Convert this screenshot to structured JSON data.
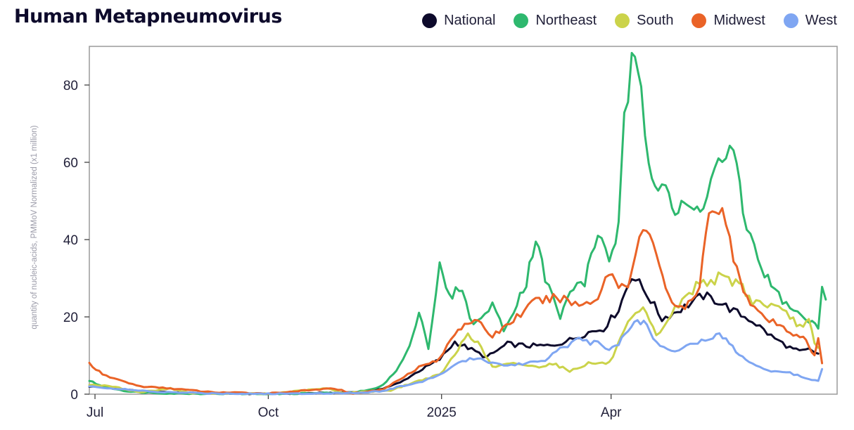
{
  "chart_data": {
    "type": "line",
    "title": "Human Metapneumovirus",
    "ylabel": "quantity of nucleic-acids, PMMoV Normalized (x1 million)",
    "xlabel": "",
    "ylim": [
      0,
      90
    ],
    "yticks": [
      0,
      20,
      40,
      60,
      80
    ],
    "x_range": [
      "2024-06-28",
      "2025-07-30"
    ],
    "xticks": [
      {
        "date": "2024-07-01",
        "label": "Jul"
      },
      {
        "date": "2024-10-01",
        "label": "Oct"
      },
      {
        "date": "2025-01-01",
        "label": "2025"
      },
      {
        "date": "2025-04-01",
        "label": "Apr"
      }
    ],
    "grid": false,
    "legend_position": "top-right",
    "series": [
      {
        "name": "National",
        "color": "#0d0a2b",
        "points": [
          [
            "2024-06-28",
            2
          ],
          [
            "2024-07-10",
            1.6
          ],
          [
            "2024-07-25",
            0.8
          ],
          [
            "2024-08-10",
            0.4
          ],
          [
            "2024-09-01",
            0.2
          ],
          [
            "2024-10-01",
            0.1
          ],
          [
            "2024-11-01",
            0.3
          ],
          [
            "2024-11-20",
            0.6
          ],
          [
            "2024-12-01",
            1.5
          ],
          [
            "2024-12-10",
            3
          ],
          [
            "2024-12-20",
            6
          ],
          [
            "2024-12-31",
            9
          ],
          [
            "2025-01-08",
            13.5
          ],
          [
            "2025-01-15",
            12
          ],
          [
            "2025-01-25",
            9.5
          ],
          [
            "2025-02-05",
            13
          ],
          [
            "2025-02-15",
            12.5
          ],
          [
            "2025-02-28",
            12.5
          ],
          [
            "2025-03-10",
            14
          ],
          [
            "2025-03-20",
            16
          ],
          [
            "2025-03-28",
            17
          ],
          [
            "2025-04-05",
            22
          ],
          [
            "2025-04-12",
            31
          ],
          [
            "2025-04-20",
            26
          ],
          [
            "2025-04-28",
            19.5
          ],
          [
            "2025-05-08",
            22
          ],
          [
            "2025-05-20",
            25.5
          ],
          [
            "2025-05-28",
            24
          ],
          [
            "2025-06-05",
            21.5
          ],
          [
            "2025-06-15",
            19
          ],
          [
            "2025-06-25",
            15
          ],
          [
            "2025-07-05",
            12
          ],
          [
            "2025-07-10",
            11
          ],
          [
            "2025-07-15",
            11.5
          ],
          [
            "2025-07-20",
            10.5
          ]
        ]
      },
      {
        "name": "Northeast",
        "color": "#2eb86e",
        "points": [
          [
            "2024-06-28",
            3.5
          ],
          [
            "2024-07-05",
            2
          ],
          [
            "2024-07-20",
            0.6
          ],
          [
            "2024-08-10",
            0.2
          ],
          [
            "2024-10-01",
            0.05
          ],
          [
            "2024-11-15",
            0.4
          ],
          [
            "2024-11-25",
            1.2
          ],
          [
            "2024-12-01",
            2.5
          ],
          [
            "2024-12-08",
            6
          ],
          [
            "2024-12-15",
            12
          ],
          [
            "2024-12-20",
            22
          ],
          [
            "2024-12-25",
            12
          ],
          [
            "2024-12-31",
            33
          ],
          [
            "2025-01-05",
            25
          ],
          [
            "2025-01-12",
            28
          ],
          [
            "2025-01-16",
            19
          ],
          [
            "2025-01-22",
            19
          ],
          [
            "2025-01-28",
            24
          ],
          [
            "2025-02-03",
            16
          ],
          [
            "2025-02-10",
            24
          ],
          [
            "2025-02-15",
            29
          ],
          [
            "2025-02-20",
            41
          ],
          [
            "2025-02-25",
            30
          ],
          [
            "2025-03-05",
            20
          ],
          [
            "2025-03-12",
            28
          ],
          [
            "2025-03-18",
            29
          ],
          [
            "2025-03-25",
            42
          ],
          [
            "2025-03-31",
            35
          ],
          [
            "2025-04-05",
            43
          ],
          [
            "2025-04-08",
            70
          ],
          [
            "2025-04-12",
            86
          ],
          [
            "2025-04-17",
            78
          ],
          [
            "2025-04-21",
            60
          ],
          [
            "2025-04-26",
            55
          ],
          [
            "2025-04-30",
            56
          ],
          [
            "2025-05-05",
            46
          ],
          [
            "2025-05-10",
            49
          ],
          [
            "2025-05-15",
            47
          ],
          [
            "2025-05-20",
            50
          ],
          [
            "2025-05-28",
            60
          ],
          [
            "2025-06-05",
            63
          ],
          [
            "2025-06-10",
            47
          ],
          [
            "2025-06-18",
            35
          ],
          [
            "2025-06-25",
            28
          ],
          [
            "2025-07-05",
            22
          ],
          [
            "2025-07-15",
            19
          ],
          [
            "2025-07-20",
            17
          ],
          [
            "2025-07-22",
            29
          ],
          [
            "2025-07-24",
            24.5
          ]
        ]
      },
      {
        "name": "South",
        "color": "#cbd34a",
        "points": [
          [
            "2024-06-28",
            2.5
          ],
          [
            "2024-07-10",
            2
          ],
          [
            "2024-07-25",
            0.5
          ],
          [
            "2024-08-10",
            1.5
          ],
          [
            "2024-08-20",
            0.3
          ],
          [
            "2024-10-01",
            0.1
          ],
          [
            "2024-11-01",
            1.5
          ],
          [
            "2024-11-10",
            0.3
          ],
          [
            "2024-12-05",
            1
          ],
          [
            "2024-12-20",
            3.5
          ],
          [
            "2024-12-31",
            5
          ],
          [
            "2025-01-08",
            10
          ],
          [
            "2025-01-15",
            16
          ],
          [
            "2025-01-22",
            12
          ],
          [
            "2025-01-28",
            7
          ],
          [
            "2025-02-10",
            8
          ],
          [
            "2025-02-20",
            7
          ],
          [
            "2025-03-01",
            8
          ],
          [
            "2025-03-10",
            6
          ],
          [
            "2025-03-20",
            8
          ],
          [
            "2025-03-31",
            8
          ],
          [
            "2025-04-10",
            18
          ],
          [
            "2025-04-18",
            22
          ],
          [
            "2025-04-25",
            15
          ],
          [
            "2025-05-05",
            22
          ],
          [
            "2025-05-18",
            29
          ],
          [
            "2025-05-28",
            30
          ],
          [
            "2025-06-08",
            29
          ],
          [
            "2025-06-15",
            24
          ],
          [
            "2025-06-25",
            23
          ],
          [
            "2025-07-05",
            20
          ],
          [
            "2025-07-12",
            17
          ],
          [
            "2025-07-15",
            19
          ],
          [
            "2025-07-18",
            13
          ],
          [
            "2025-07-20",
            12
          ]
        ]
      },
      {
        "name": "Midwest",
        "color": "#ea6327",
        "points": [
          [
            "2024-06-28",
            8
          ],
          [
            "2024-07-05",
            5
          ],
          [
            "2024-07-15",
            3.5
          ],
          [
            "2024-07-25",
            2
          ],
          [
            "2024-08-10",
            1.5
          ],
          [
            "2024-09-01",
            0.5
          ],
          [
            "2024-10-01",
            0.2
          ],
          [
            "2024-11-05",
            1.5
          ],
          [
            "2024-11-15",
            0.2
          ],
          [
            "2024-12-01",
            1.2
          ],
          [
            "2024-12-10",
            4
          ],
          [
            "2024-12-20",
            7
          ],
          [
            "2024-12-31",
            9
          ],
          [
            "2025-01-08",
            16
          ],
          [
            "2025-01-15",
            19
          ],
          [
            "2025-01-22",
            18
          ],
          [
            "2025-01-28",
            15
          ],
          [
            "2025-02-10",
            20
          ],
          [
            "2025-02-20",
            24
          ],
          [
            "2025-03-05",
            25
          ],
          [
            "2025-03-15",
            23
          ],
          [
            "2025-03-25",
            25
          ],
          [
            "2025-03-31",
            32
          ],
          [
            "2025-04-05",
            28
          ],
          [
            "2025-04-10",
            29
          ],
          [
            "2025-04-18",
            43
          ],
          [
            "2025-04-25",
            37
          ],
          [
            "2025-04-30",
            28
          ],
          [
            "2025-05-05",
            22
          ],
          [
            "2025-05-12",
            23
          ],
          [
            "2025-05-18",
            27
          ],
          [
            "2025-05-23",
            49
          ],
          [
            "2025-05-30",
            47
          ],
          [
            "2025-06-05",
            36
          ],
          [
            "2025-06-12",
            25
          ],
          [
            "2025-06-20",
            20
          ],
          [
            "2025-06-28",
            18
          ],
          [
            "2025-07-05",
            16
          ],
          [
            "2025-07-12",
            15
          ],
          [
            "2025-07-15",
            12
          ],
          [
            "2025-07-18",
            10
          ],
          [
            "2025-07-20",
            14
          ],
          [
            "2025-07-22",
            8
          ]
        ]
      },
      {
        "name": "West",
        "color": "#7fa6f2",
        "points": [
          [
            "2024-06-28",
            2
          ],
          [
            "2024-07-15",
            1.3
          ],
          [
            "2024-08-01",
            0.6
          ],
          [
            "2024-09-01",
            0.2
          ],
          [
            "2024-10-01",
            0.1
          ],
          [
            "2024-11-15",
            0.3
          ],
          [
            "2024-12-01",
            0.8
          ],
          [
            "2024-12-10",
            2
          ],
          [
            "2024-12-20",
            3
          ],
          [
            "2024-12-31",
            5
          ],
          [
            "2025-01-10",
            8
          ],
          [
            "2025-01-20",
            9.5
          ],
          [
            "2025-02-01",
            7.5
          ],
          [
            "2025-02-15",
            8
          ],
          [
            "2025-02-25",
            9
          ],
          [
            "2025-03-05",
            12
          ],
          [
            "2025-03-15",
            14
          ],
          [
            "2025-03-25",
            13
          ],
          [
            "2025-03-31",
            12
          ],
          [
            "2025-04-05",
            13
          ],
          [
            "2025-04-10",
            17
          ],
          [
            "2025-04-15",
            19
          ],
          [
            "2025-04-20",
            18
          ],
          [
            "2025-04-25",
            13
          ],
          [
            "2025-05-05",
            11.5
          ],
          [
            "2025-05-15",
            13
          ],
          [
            "2025-05-25",
            15
          ],
          [
            "2025-06-01",
            15
          ],
          [
            "2025-06-08",
            10
          ],
          [
            "2025-06-15",
            8
          ],
          [
            "2025-06-25",
            6
          ],
          [
            "2025-07-05",
            5.5
          ],
          [
            "2025-07-15",
            4
          ],
          [
            "2025-07-20",
            3.5
          ],
          [
            "2025-07-22",
            6.5
          ]
        ]
      }
    ]
  }
}
